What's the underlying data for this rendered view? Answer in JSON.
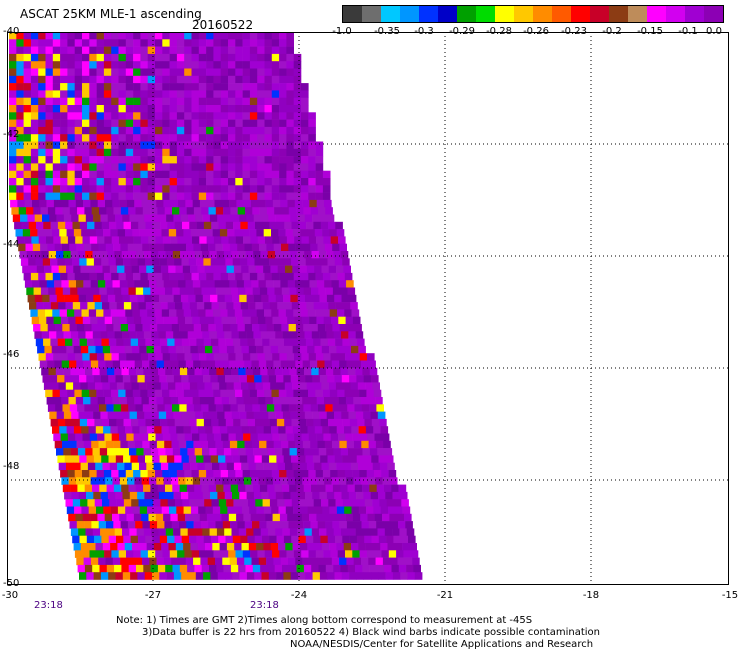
{
  "title": "ASCAT 25KM MLE-1 ascending",
  "date": "20160522",
  "colorbar": {
    "colors": [
      "#3a3a3a",
      "#6e6e6e",
      "#00c8ff",
      "#0096ff",
      "#0032ff",
      "#0000c8",
      "#00a000",
      "#00dc00",
      "#ffff00",
      "#ffc800",
      "#ff8c00",
      "#ff5a00",
      "#ff0000",
      "#c80028",
      "#8c3c14",
      "#be8c5a",
      "#ff00ff",
      "#d200f0",
      "#a000d2",
      "#8c00b4"
    ],
    "labels": [
      "-1.0",
      "-0.35",
      "-0.3",
      "-0.29",
      "-0.28",
      "-0.26",
      "-0.23",
      "-0.2",
      "-0.15",
      "-0.1",
      "0.0"
    ]
  },
  "map": {
    "lat_labels": [
      "-40",
      "-42",
      "-44",
      "-46",
      "-48",
      "-50"
    ],
    "lon_labels": [
      "-30",
      "-27",
      "-24",
      "-21",
      "-18",
      "-15"
    ],
    "time_labels": [
      "23:18",
      "23:18"
    ]
  },
  "notes": [
    "Note: 1) Times are GMT 2)Times along bottom correspond to measurement at -45S",
    "3)Data buffer is 22 hrs from 20160522 4) Black wind barbs indicate possible contamination",
    "NOAA/NESDIS/Center for Satellite Applications and Research"
  ]
}
